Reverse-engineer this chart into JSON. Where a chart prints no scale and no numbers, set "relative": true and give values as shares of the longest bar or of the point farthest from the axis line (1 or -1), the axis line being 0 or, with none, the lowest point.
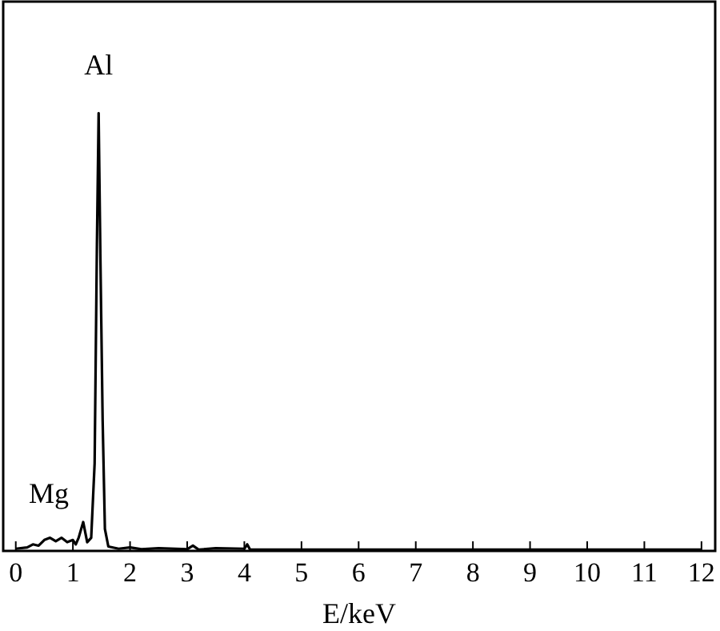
{
  "chart_data": {
    "type": "line",
    "relative": true,
    "xlabel": "E/keV",
    "xlim": [
      -0.22,
      12.24
    ],
    "xticks": [
      0,
      1,
      2,
      3,
      4,
      5,
      6,
      7,
      8,
      9,
      10,
      11,
      12
    ],
    "grid": false,
    "marker": "none",
    "line_style": "solid",
    "tick_labels": "x",
    "annotations": [
      {
        "text": "Mg",
        "x": 1.18,
        "y": 0.066
      },
      {
        "text": "Al",
        "x": 1.45,
        "y": 1.0
      }
    ],
    "series": [
      {
        "color": "#000000",
        "x": [
          0,
          0.2,
          0.3,
          0.4,
          0.5,
          0.6,
          0.7,
          0.8,
          0.9,
          1.0,
          1.05,
          1.1,
          1.18,
          1.25,
          1.32,
          1.38,
          1.42,
          1.45,
          1.48,
          1.52,
          1.56,
          1.62,
          1.8,
          2.0,
          2.2,
          2.5,
          3.0,
          3.1,
          3.2,
          3.5,
          4.0,
          4.05,
          4.1,
          5,
          12
        ],
        "values": [
          0.005,
          0.008,
          0.015,
          0.012,
          0.025,
          0.03,
          0.022,
          0.03,
          0.02,
          0.025,
          0.015,
          0.03,
          0.066,
          0.02,
          0.03,
          0.2,
          0.7,
          1.0,
          0.68,
          0.3,
          0.05,
          0.01,
          0.005,
          0.008,
          0.004,
          0.006,
          0.004,
          0.012,
          0.003,
          0.006,
          0.005,
          0.015,
          0.003,
          0.003,
          0.003
        ]
      }
    ]
  }
}
